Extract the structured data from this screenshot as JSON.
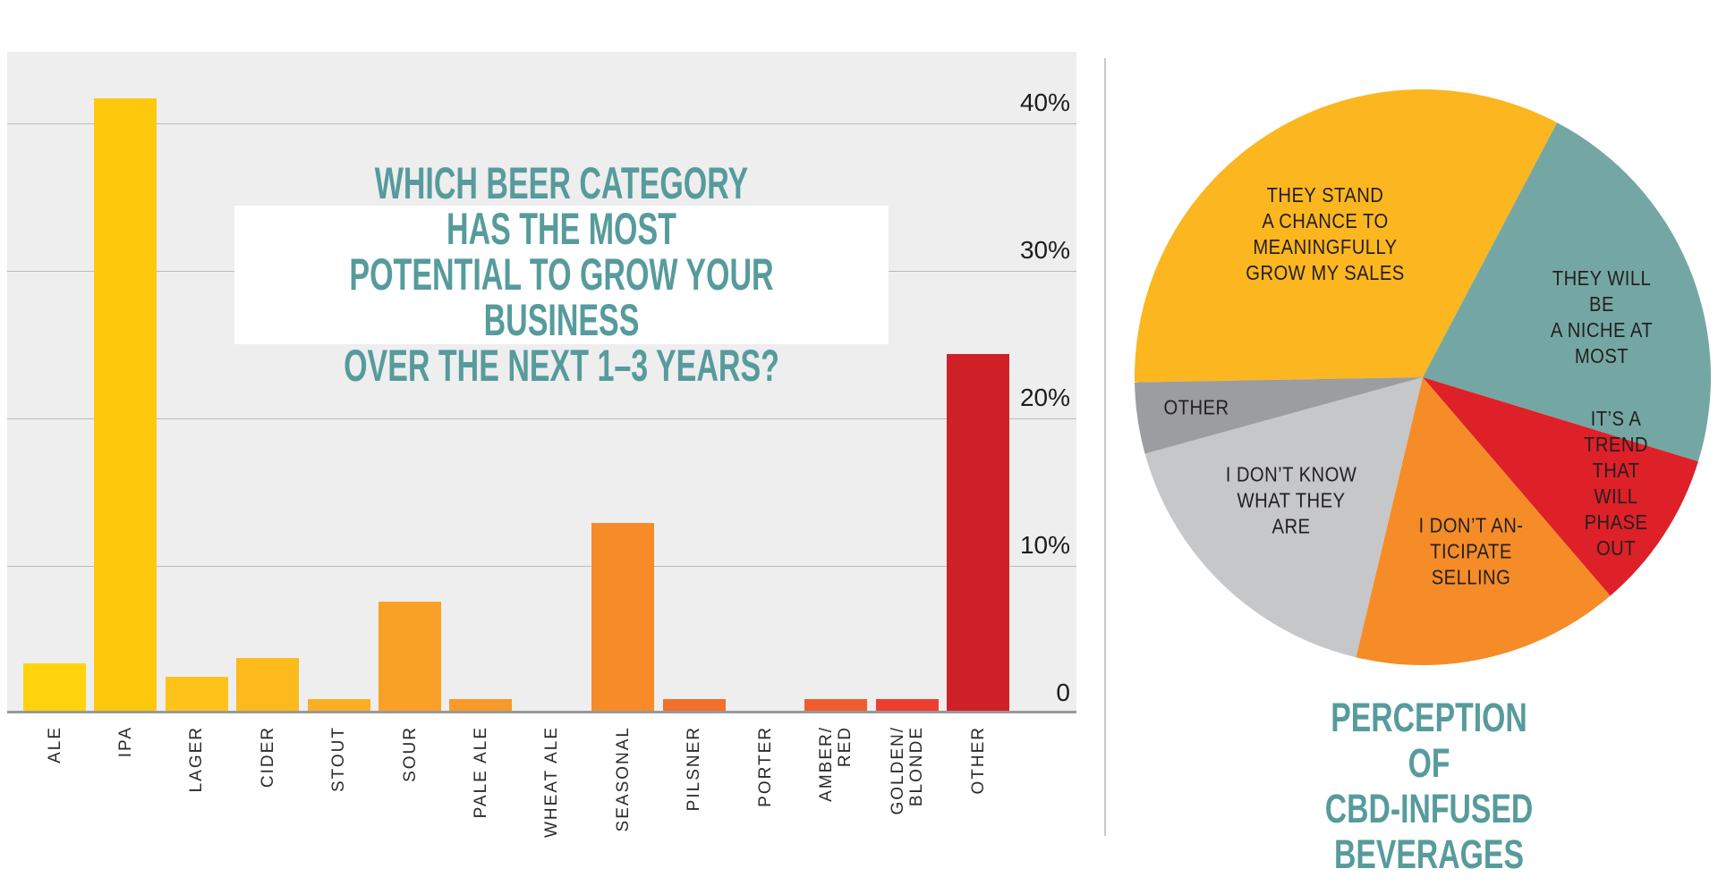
{
  "page": {
    "background": "#ffffff"
  },
  "chart_data": [
    {
      "type": "bar",
      "title": "WHICH BEER CATEGORY HAS THE MOST\nPOTENTIAL TO GROW YOUR BUSINESS\nOVER THE NEXT 1–3 YEARS?",
      "title_color": "#579b9c",
      "plot_bg": "#eeeeef",
      "gridline_color": "#b9bbbc",
      "axis_line_color": "#97999b",
      "unit": "%",
      "ylim": [
        0,
        44.8
      ],
      "grid": true,
      "legend": "none",
      "yticks": [
        {
          "label": "40%",
          "value": 40
        },
        {
          "label": "30%",
          "value": 30
        },
        {
          "label": "20%",
          "value": 20
        },
        {
          "label": "10%",
          "value": 10
        },
        {
          "label": "0",
          "value": 0
        }
      ],
      "categories": [
        "ALE",
        "IPA",
        "LAGER",
        "CIDER",
        "STOUT",
        "SOUR",
        "PALE ALE",
        "WHEAT ALE",
        "SEASONAL",
        "PILSNER",
        "PORTER",
        "AMBER/\nRED",
        "GOLDEN/\nBLONDE",
        "OTHER"
      ],
      "values": [
        3.2,
        41.5,
        2.3,
        3.6,
        0.8,
        7.4,
        0.8,
        0,
        12.7,
        0.8,
        0,
        0.8,
        0.8,
        24.2
      ],
      "bar_colors": [
        "#ffd30e",
        "#fec90d",
        "#fdc31a",
        "#fcba1c",
        "#faaf24",
        "#f9a127",
        "#f79a2a",
        "#f79128",
        "#f68b28",
        "#f3702c",
        "#f2672d",
        "#f15c2e",
        "#ee3d31",
        "#d02129"
      ],
      "tick_label_color": "#1c1c1c",
      "category_label_color": "#2b2b2b"
    },
    {
      "type": "pie",
      "title": "PERCEPTION OF\nCBD-INFUSED\nBEVERAGES",
      "title_color": "#579b9c",
      "label_color": "#231f20",
      "start_angle_clockwise_from_top": 269,
      "slices": [
        {
          "label": "THEY STAND\nA CHANCE TO\nMEANINGFULLY\nGROW MY SALES",
          "percent": 33,
          "color": "#fbb620"
        },
        {
          "label": "THEY WILL BE\nA NICHE AT\nMOST",
          "percent": 22,
          "color": "#74a7a3"
        },
        {
          "label": "IT’S A TREND\nTHAT WILL\nPHASE OUT",
          "percent": 9,
          "color": "#de2028"
        },
        {
          "label": "I DON’T AN-\nTICIPATE\nSELLING",
          "percent": 15,
          "color": "#f58c28"
        },
        {
          "label": "I DON’T KNOW\nWHAT THEY\nARE",
          "percent": 17,
          "color": "#c6c7c9"
        },
        {
          "label": "OTHER",
          "percent": 4,
          "color": "#9b9da0"
        }
      ]
    }
  ]
}
